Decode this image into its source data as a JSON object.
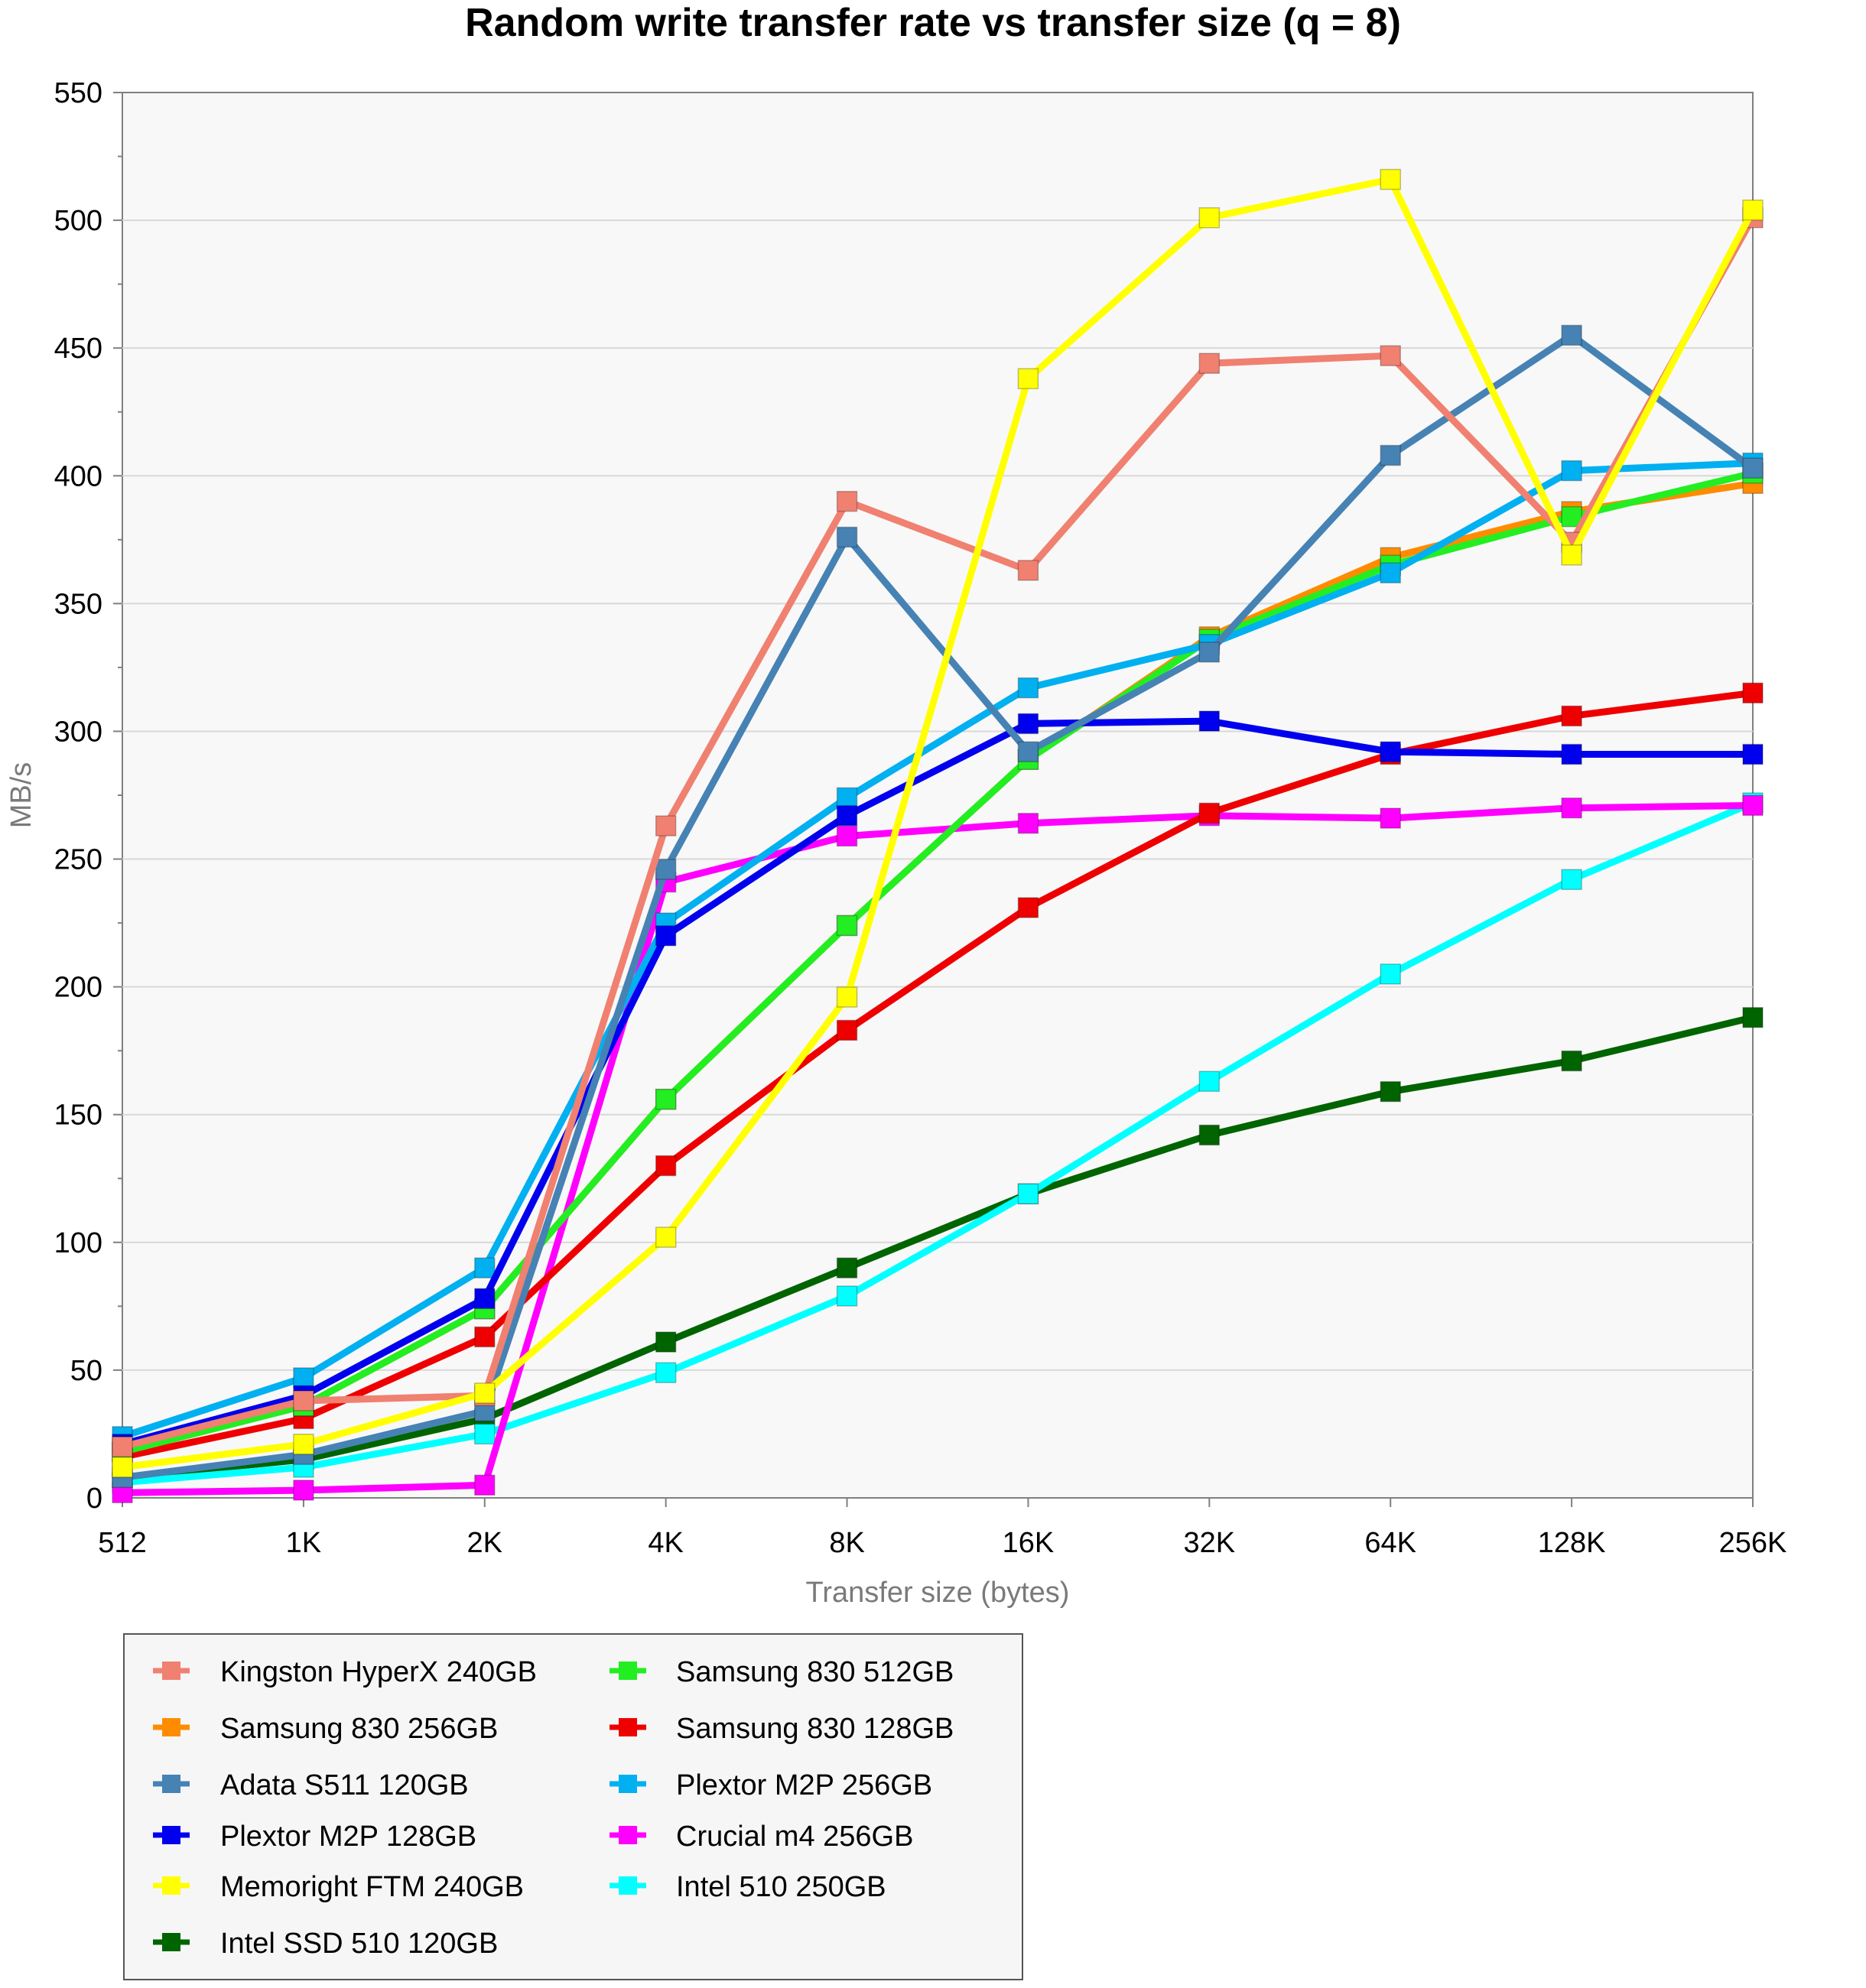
{
  "chart_data": {
    "type": "line",
    "title": "Random write transfer rate vs transfer size (q = 8)",
    "xlabel": "Transfer size (bytes)",
    "ylabel": "MB/s",
    "categories": [
      "512",
      "1K",
      "2K",
      "4K",
      "8K",
      "16K",
      "32K",
      "64K",
      "128K",
      "256K"
    ],
    "ylim": [
      0,
      550
    ],
    "yticks": [
      "0",
      "50",
      "100",
      "150",
      "200",
      "250",
      "300",
      "350",
      "400",
      "450",
      "500",
      "550"
    ],
    "grid": true,
    "legend_position": "bottom-left",
    "series": [
      {
        "name": "Kingston HyperX 240GB",
        "color": "#F08070",
        "values": [
          20,
          38,
          40,
          263,
          390,
          363,
          444,
          447,
          374,
          501
        ]
      },
      {
        "name": "Samsung 830 256GB",
        "color": "#FF8C00",
        "values": [
          18,
          36,
          74,
          156,
          224,
          289,
          337,
          368,
          386,
          397
        ]
      },
      {
        "name": "Adata S511 120GB",
        "color": "#4682B4",
        "values": [
          8,
          17,
          34,
          246,
          376,
          292,
          331,
          408,
          455,
          403
        ]
      },
      {
        "name": "Plextor M2P 128GB",
        "color": "#0000EE",
        "values": [
          21,
          40,
          78,
          220,
          267,
          303,
          304,
          292,
          291,
          291
        ]
      },
      {
        "name": "Memoright FTM 240GB",
        "color": "#FFFF00",
        "values": [
          12,
          21,
          41,
          102,
          196,
          438,
          501,
          516,
          369,
          504
        ]
      },
      {
        "name": "Intel SSD 510 120GB",
        "color": "#006400",
        "values": [
          8,
          15,
          31,
          61,
          90,
          119,
          142,
          159,
          171,
          188
        ]
      },
      {
        "name": "Samsung 830 512GB",
        "color": "#22EE22",
        "values": [
          18,
          36,
          74,
          156,
          224,
          289,
          336,
          365,
          384,
          401
        ]
      },
      {
        "name": "Samsung 830 128GB",
        "color": "#EE0000",
        "values": [
          16,
          31,
          63,
          130,
          183,
          231,
          268,
          291,
          306,
          315
        ]
      },
      {
        "name": "Plextor M2P 256GB",
        "color": "#00B0F0",
        "values": [
          24,
          47,
          90,
          225,
          274,
          317,
          334,
          362,
          402,
          405
        ]
      },
      {
        "name": "Crucial m4 256GB",
        "color": "#FF00FF",
        "values": [
          2,
          3,
          5,
          241,
          259,
          264,
          267,
          266,
          270,
          271
        ]
      },
      {
        "name": "Intel 510 250GB",
        "color": "#00FFFF",
        "values": [
          6,
          12,
          25,
          49,
          79,
          119,
          163,
          205,
          242,
          272
        ]
      }
    ]
  }
}
